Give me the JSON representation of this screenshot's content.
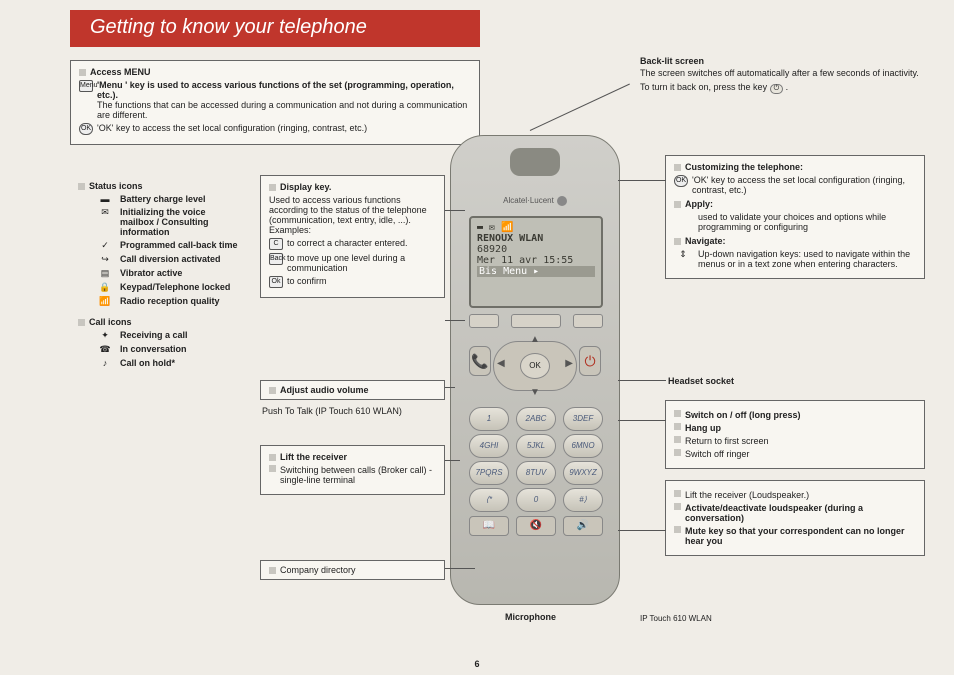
{
  "colors": {
    "title_bg": "#c0362c",
    "page_bg": "#f0ede7",
    "box_border": "#666666"
  },
  "title": "Getting to know your telephone",
  "page_number": "6",
  "top_right": {
    "heading": "Back-lit screen",
    "line1": "The screen switches off automatically after a few seconds of inactivity.",
    "line2_a": "To turn it back on, press the key",
    "line2_b": "."
  },
  "access_menu": {
    "heading": "Access MENU",
    "menu_icon_label": "Menu",
    "menu_bold": "'Menu ' key is used to access various functions of the set (programming, operation, etc.).",
    "menu_text": "The functions that can be accessed during a communication and not during a communication are different.",
    "ok_icon_label": "OK",
    "ok_text": "'OK' key to access the set local configuration (ringing, contrast, etc.)"
  },
  "status": {
    "heading": "Status icons",
    "items": [
      {
        "icon": "▬",
        "label": "Battery charge level",
        "bold": true
      },
      {
        "icon": "✉",
        "label": "Initializing the voice mailbox / Consulting information",
        "bold": true
      },
      {
        "icon": "✓",
        "label": "Programmed call-back time",
        "bold": true
      },
      {
        "icon": "↪",
        "label": "Call diversion activated",
        "bold": true
      },
      {
        "icon": "▤",
        "label": "Vibrator active",
        "bold": true
      },
      {
        "icon": "🔒",
        "label": "Keypad/Telephone locked",
        "bold": true
      },
      {
        "icon": "📶",
        "label": "Radio reception quality",
        "bold": true
      }
    ],
    "call_heading": "Call icons",
    "call_items": [
      {
        "icon": "✦",
        "label": "Receiving a call",
        "bold": true
      },
      {
        "icon": "☎",
        "label": "In conversation",
        "bold": true
      },
      {
        "icon": "♪",
        "label": "Call on hold*",
        "bold": true
      }
    ]
  },
  "display_key": {
    "heading": "Display key.",
    "text": "Used to access various functions according to the status of the telephone (communication, text entry, idle, ...). Examples:",
    "rows": [
      {
        "icon": "C",
        "label": "to correct a character entered."
      },
      {
        "icon": "Back",
        "label": "to move up one level during a communication"
      },
      {
        "icon": "Ok",
        "label": "to confirm"
      }
    ]
  },
  "adjust_volume": {
    "heading": "Adjust audio volume"
  },
  "ptt": "Push To Talk (IP Touch 610 WLAN)",
  "lift_receiver": {
    "heading": "Lift the receiver",
    "text": "Switching between calls (Broker call) - single-line terminal"
  },
  "company_dir": {
    "text": "Company directory"
  },
  "customize": {
    "heading": "Customizing the telephone:",
    "ok_label": "OK",
    "text": "'OK' key to access the set local configuration (ringing, contrast, etc.)",
    "apply_heading": "Apply:",
    "apply_text": "used to validate your choices and options while programming or configuring",
    "nav_heading": "Navigate:",
    "nav_text": "Up-down navigation keys: used to navigate within the menus or in a text zone when entering characters."
  },
  "headset": "Headset socket",
  "switch_box": {
    "items": [
      {
        "label": "Switch on / off (long press)",
        "bold": true
      },
      {
        "label": "Hang up",
        "bold": true
      },
      {
        "label": "Return to first screen",
        "bold": false
      },
      {
        "label": "Switch off ringer",
        "bold": false
      }
    ]
  },
  "loud_box": {
    "items": [
      {
        "label": "Lift the receiver (Loudspeaker.)",
        "bold": false
      },
      {
        "label": "Activate/deactivate loudspeaker (during a conversation)",
        "bold": true
      },
      {
        "label": "Mute key so that your correspondent can no longer hear you",
        "bold": true
      }
    ]
  },
  "mic": "Microphone",
  "model": "IP Touch 610 WLAN",
  "phone": {
    "brand": "Alcatel·Lucent",
    "screen_lines": [
      "▬ ✉         📶",
      "RENOUX WLAN",
      "68920",
      "Mer 11 avr  15:55",
      "Bis Menu         ▸"
    ],
    "ok": "OK",
    "keys": [
      [
        "1",
        "2ABC",
        "3DEF"
      ],
      [
        "4GHI",
        "5JKL",
        "6MNO"
      ],
      [
        "7PQRS",
        "8TUV",
        "9WXYZ"
      ],
      [
        "⟨*",
        "0",
        "#⟩"
      ]
    ],
    "bottom": [
      "📖",
      "🔇",
      "🔊"
    ]
  }
}
